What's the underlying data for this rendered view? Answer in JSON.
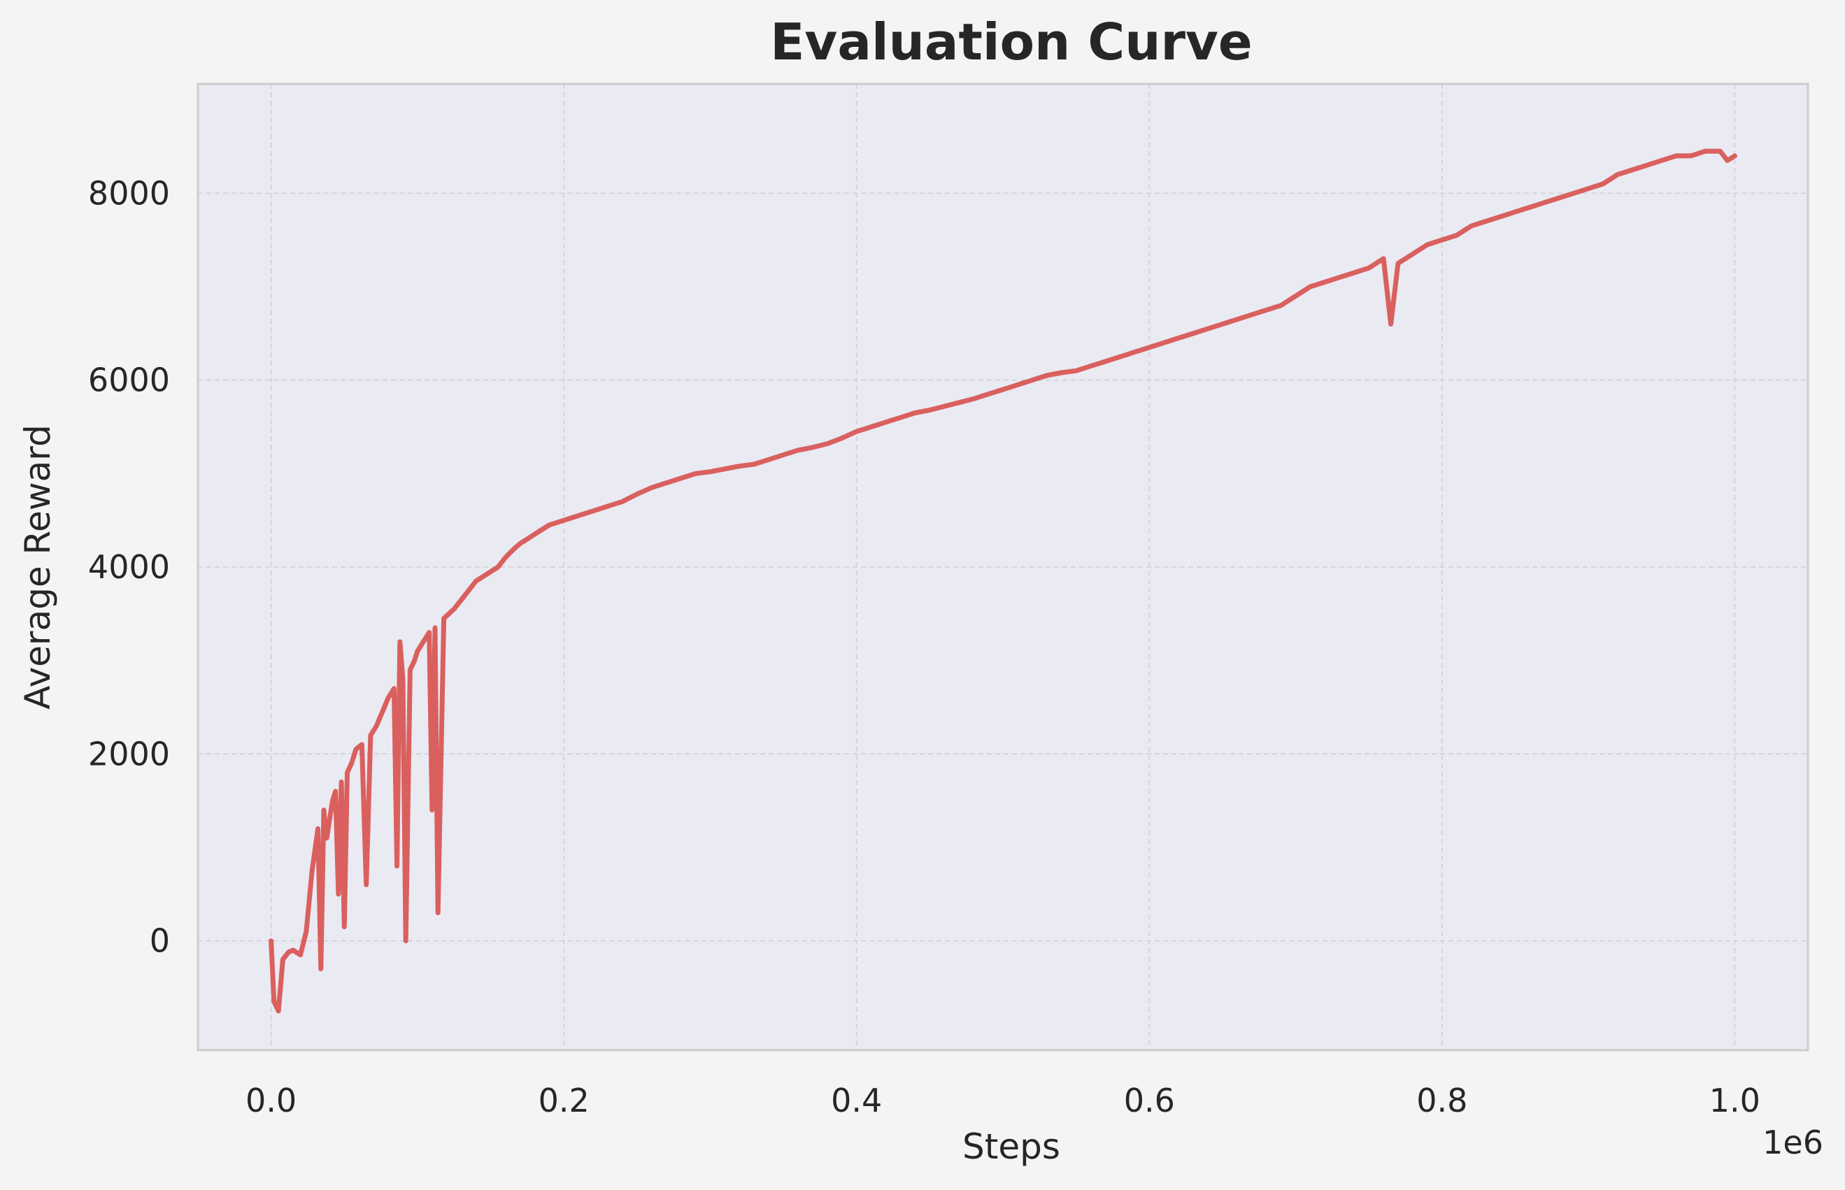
{
  "chart_data": {
    "type": "line",
    "title": "Evaluation Curve",
    "xlabel": "Steps",
    "ylabel": "Average Reward",
    "x_offset_label": "1e6",
    "xlim": [
      -50000,
      1050000
    ],
    "ylim": [
      -1170,
      9170
    ],
    "x_ticks": [
      0,
      200000,
      400000,
      600000,
      800000,
      1000000
    ],
    "x_tick_labels": [
      "0.0",
      "0.2",
      "0.4",
      "0.6",
      "0.8",
      "1.0"
    ],
    "y_ticks": [
      0,
      2000,
      4000,
      6000,
      8000
    ],
    "y_tick_labels": [
      "0",
      "2000",
      "4000",
      "6000",
      "8000"
    ],
    "grid": true,
    "colors": {
      "line": "#d9605e",
      "plot_bg": "#eaeaf2",
      "figure_bg": "#f4f4f4",
      "grid": "#cfcfd6",
      "spine": "#cccccc",
      "text": "#262626"
    },
    "series": [
      {
        "x": [
          0,
          2000,
          5000,
          8000,
          12000,
          15000,
          20000,
          24000,
          28000,
          32000,
          34000,
          36000,
          38000,
          40000,
          42000,
          44000,
          46000,
          48000,
          50000,
          52000,
          55000,
          58000,
          62000,
          65000,
          68000,
          72000,
          76000,
          80000,
          84000,
          86000,
          88000,
          90000,
          92000,
          95000,
          98000,
          100000,
          104000,
          108000,
          110000,
          112000,
          114000,
          118000,
          125000,
          130000,
          135000,
          140000,
          145000,
          150000,
          155000,
          160000,
          165000,
          170000,
          175000,
          180000,
          185000,
          190000,
          200000,
          210000,
          220000,
          230000,
          240000,
          250000,
          260000,
          270000,
          280000,
          290000,
          300000,
          310000,
          320000,
          330000,
          340000,
          350000,
          360000,
          370000,
          380000,
          390000,
          400000,
          410000,
          420000,
          430000,
          440000,
          450000,
          460000,
          470000,
          480000,
          490000,
          500000,
          510000,
          520000,
          530000,
          540000,
          550000,
          560000,
          570000,
          580000,
          590000,
          600000,
          610000,
          620000,
          630000,
          640000,
          650000,
          660000,
          670000,
          680000,
          690000,
          700000,
          710000,
          720000,
          730000,
          740000,
          750000,
          760000,
          765000,
          770000,
          780000,
          790000,
          800000,
          810000,
          820000,
          830000,
          840000,
          850000,
          860000,
          870000,
          880000,
          890000,
          900000,
          910000,
          920000,
          930000,
          940000,
          950000,
          960000,
          970000,
          980000,
          990000,
          995000,
          1000000
        ],
        "y": [
          0,
          -650,
          -750,
          -200,
          -120,
          -100,
          -150,
          100,
          750,
          1200,
          -300,
          1400,
          1100,
          1300,
          1500,
          1600,
          500,
          1700,
          150,
          1800,
          1900,
          2050,
          2100,
          600,
          2200,
          2300,
          2450,
          2600,
          2700,
          800,
          3200,
          2800,
          0,
          2900,
          3000,
          3100,
          3200,
          3300,
          1400,
          3350,
          300,
          3450,
          3550,
          3650,
          3750,
          3850,
          3900,
          3950,
          4000,
          4100,
          4180,
          4250,
          4300,
          4350,
          4400,
          4450,
          4500,
          4550,
          4600,
          4650,
          4700,
          4780,
          4850,
          4900,
          4950,
          5000,
          5020,
          5050,
          5080,
          5100,
          5150,
          5200,
          5250,
          5280,
          5320,
          5380,
          5450,
          5500,
          5550,
          5600,
          5650,
          5680,
          5720,
          5760,
          5800,
          5850,
          5900,
          5950,
          6000,
          6050,
          6080,
          6100,
          6150,
          6200,
          6250,
          6300,
          6350,
          6400,
          6450,
          6500,
          6550,
          6600,
          6650,
          6700,
          6750,
          6800,
          6900,
          7000,
          7050,
          7100,
          7150,
          7200,
          7300,
          6600,
          7250,
          7350,
          7450,
          7500,
          7550,
          7650,
          7700,
          7750,
          7800,
          7850,
          7900,
          7950,
          8000,
          8050,
          8100,
          8200,
          8250,
          8300,
          8350,
          8400,
          8400,
          8450,
          8450,
          8350,
          8400
        ]
      }
    ]
  }
}
